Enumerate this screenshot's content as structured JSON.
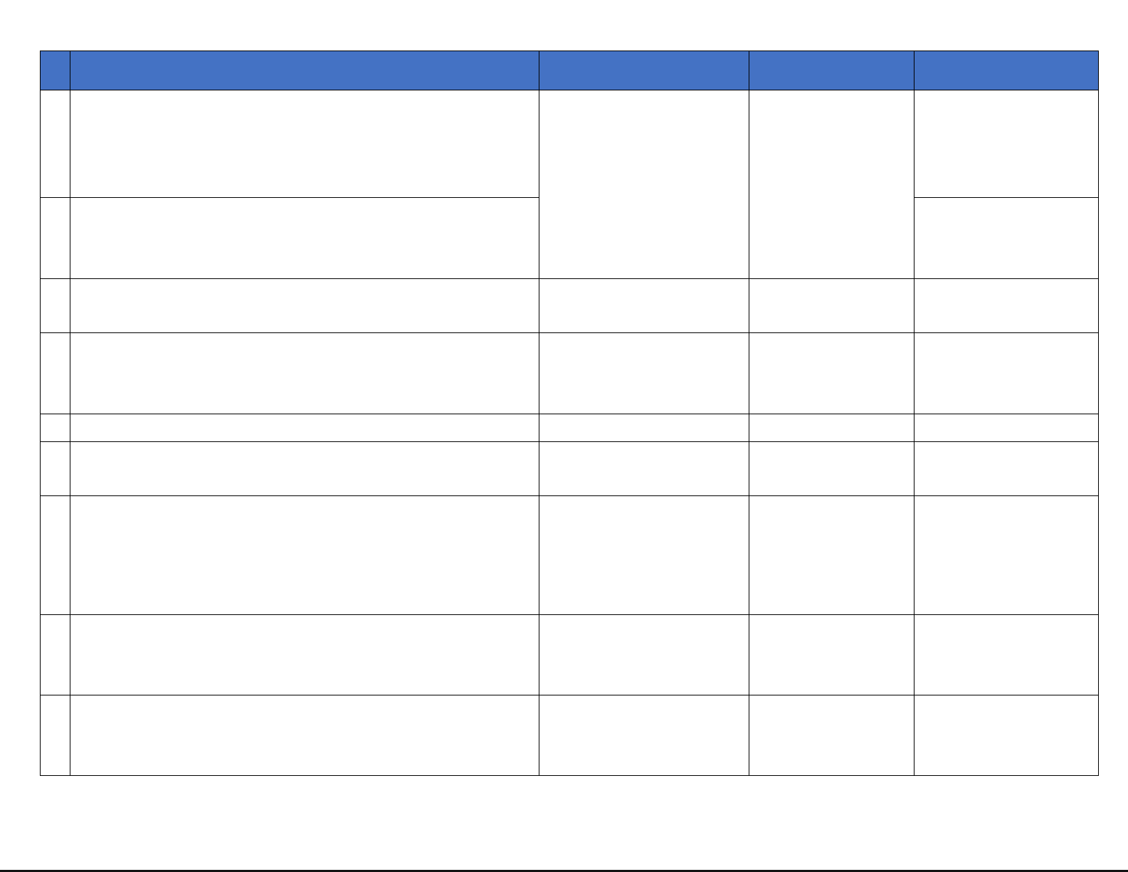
{
  "table": {
    "header_color": "#4472c4",
    "headers": [
      "",
      "",
      "",
      "",
      ""
    ],
    "rows": [
      [
        "",
        "",
        "",
        "",
        ""
      ],
      [
        "",
        "",
        "",
        "",
        ""
      ],
      [
        "",
        "",
        "",
        "",
        ""
      ],
      [
        "",
        "",
        "",
        "",
        ""
      ],
      [
        "",
        "",
        "",
        "",
        ""
      ],
      [
        "",
        "",
        "",
        "",
        ""
      ],
      [
        "",
        "",
        "",
        "",
        ""
      ],
      [
        "",
        "",
        "",
        "",
        ""
      ],
      [
        "",
        "",
        "",
        "",
        ""
      ]
    ]
  }
}
